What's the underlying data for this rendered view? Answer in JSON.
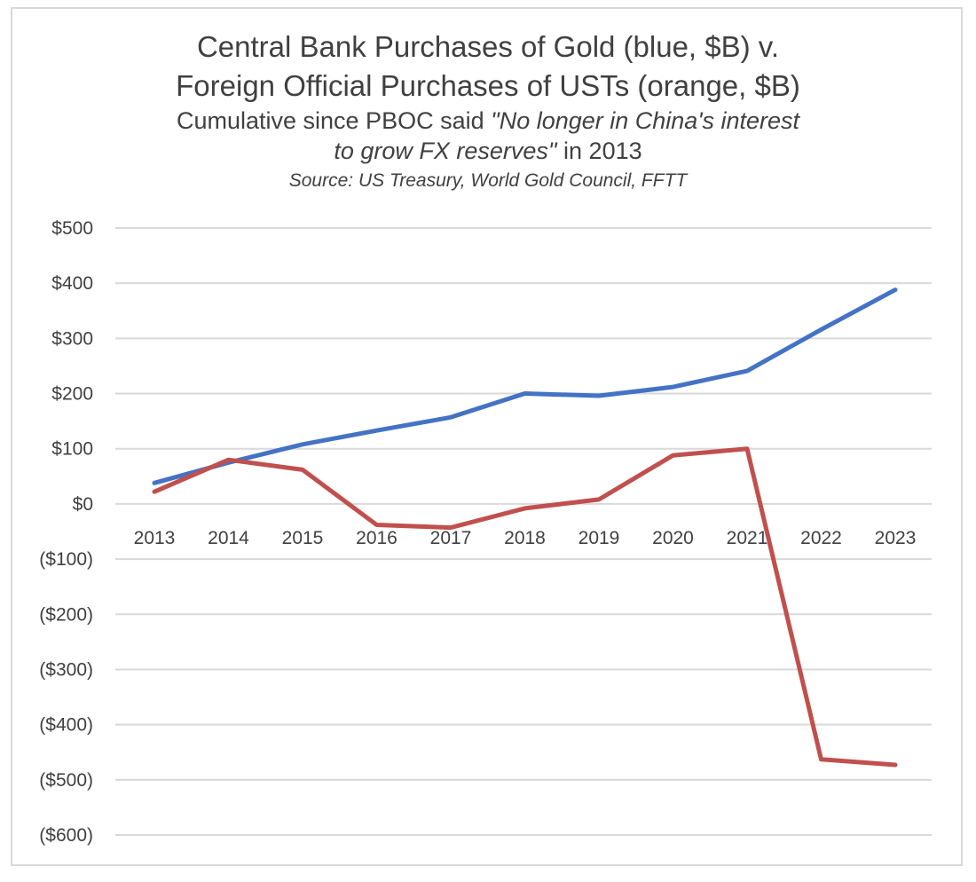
{
  "title": {
    "line1": "Central Bank Purchases of Gold (blue, $B) v.",
    "line2": "Foreign Official Purchases of USTs (orange, $B)",
    "line3": "Cumulative since PBOC said ",
    "line3_italic": "\"No longer in China's interest",
    "line4_italic": "to grow FX reserves\"",
    "line4": " in 2013",
    "source": "Source: US Treasury, World Gold Council, FFTT"
  },
  "chart_data": {
    "type": "line",
    "categories": [
      "2013",
      "2014",
      "2015",
      "2016",
      "2017",
      "2018",
      "2019",
      "2020",
      "2021",
      "2022",
      "2023"
    ],
    "series": [
      {
        "color": "#4472c4",
        "values": [
          38,
          75,
          108,
          133,
          157,
          200,
          196,
          212,
          241,
          316,
          388
        ]
      },
      {
        "color": "#c0504d",
        "values": [
          22,
          80,
          62,
          -38,
          -43,
          -8,
          8,
          88,
          100,
          -463,
          -473
        ]
      }
    ],
    "ylim": [
      -600,
      500
    ],
    "yticks": [
      500,
      400,
      300,
      200,
      100,
      0,
      -100,
      -200,
      -300,
      -400,
      -500,
      -600
    ],
    "ytick_labels": [
      "$500",
      "$400",
      "$300",
      "$200",
      "$100",
      "$0",
      "($100)",
      "($200)",
      "($300)",
      "($400)",
      "($500)",
      "($600)"
    ],
    "grid": true,
    "legend": "none"
  }
}
